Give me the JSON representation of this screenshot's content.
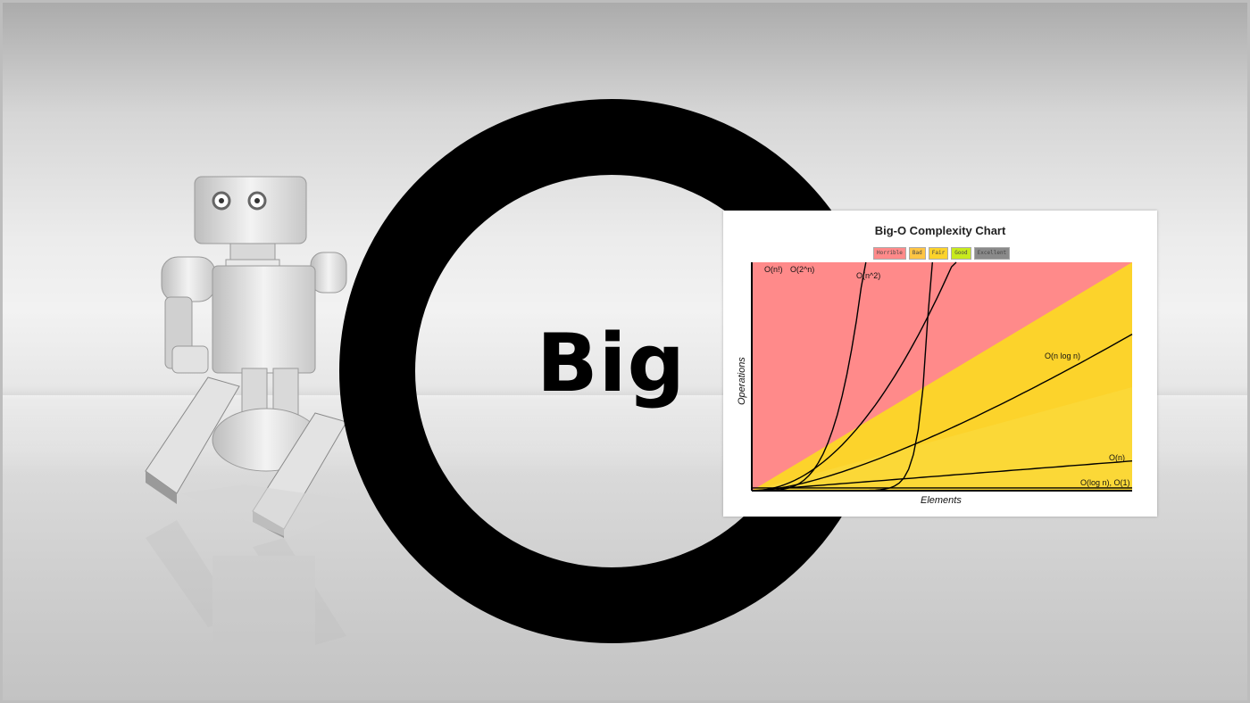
{
  "hero": {
    "big_word": "Big"
  },
  "chart_data": {
    "type": "line",
    "title": "Big-O Complexity Chart",
    "xlabel": "Elements",
    "ylabel": "Operations",
    "legend": {
      "placement": "top-center",
      "items": [
        {
          "label": "Horrible",
          "color": "#ff8a8a"
        },
        {
          "label": "Bad",
          "color": "#ffc543"
        },
        {
          "label": "Fair",
          "color": "#fcd32b"
        },
        {
          "label": "Good",
          "color": "#c8ea1e"
        },
        {
          "label": "Excellent",
          "color": "#8a8a8a"
        }
      ]
    },
    "series": [
      {
        "name": "O(n!)"
      },
      {
        "name": "O(2^n)"
      },
      {
        "name": "O(n^2)"
      },
      {
        "name": "O(n log n)"
      },
      {
        "name": "O(n)"
      },
      {
        "name": "O(log n), O(1)"
      }
    ],
    "region_colors": {
      "horrible": "#ff8a8a",
      "bad": "#fcd32b",
      "fair": "#fad83a"
    }
  }
}
